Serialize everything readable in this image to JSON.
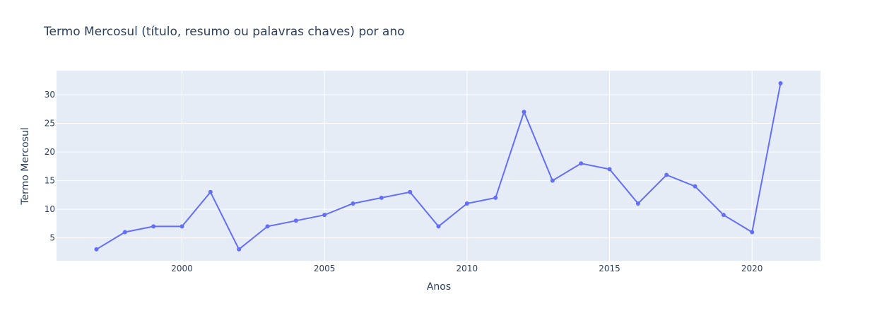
{
  "chart_data": {
    "type": "line",
    "title": "Termo Mercosul (título, resumo ou palavras chaves) por ano",
    "xlabel": "Anos",
    "ylabel": "Termo Mercosul",
    "xlim": [
      1995.6,
      2022.4
    ],
    "ylim": [
      1.0,
      34.2
    ],
    "x_ticks": [
      2000,
      2005,
      2010,
      2015,
      2020
    ],
    "y_ticks": [
      5,
      10,
      15,
      20,
      25,
      30
    ],
    "grid": true,
    "colors": {
      "series": "#636efa",
      "plot_bg": "#e5ecf6",
      "text": "#2a3f5f"
    },
    "series": [
      {
        "x": [
          1997,
          1998,
          1999,
          2000,
          2001,
          2002,
          2003,
          2004,
          2005,
          2006,
          2007,
          2008,
          2009,
          2010,
          2011,
          2012,
          2013,
          2014,
          2015,
          2016,
          2017,
          2018,
          2019,
          2020,
          2021
        ],
        "values": [
          3,
          6,
          7,
          7,
          13,
          3,
          7,
          8,
          9,
          11,
          12,
          13,
          7,
          11,
          12,
          27,
          15,
          18,
          17,
          11,
          16,
          14,
          9,
          6,
          32
        ]
      }
    ]
  }
}
